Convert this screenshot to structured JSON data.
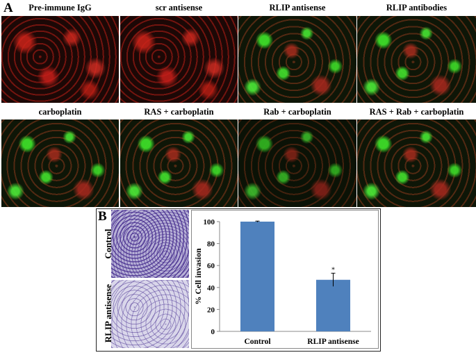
{
  "panel_a": {
    "letter": "A",
    "row1_labels": [
      "Pre-immune IgG",
      "scr antisense",
      "RLIP antisense",
      "RLIP antibodies"
    ],
    "row2_labels": [
      "carboplatin",
      "RAS + carboplatin",
      "Rab + carboplatin",
      "RAS + Rab + carboplatin"
    ]
  },
  "panel_b": {
    "letter": "B",
    "image_labels": [
      "Control",
      "RLIP antisense"
    ]
  },
  "chart_data": {
    "type": "bar",
    "categories": [
      "Control",
      "RLIP antisense"
    ],
    "values": [
      100,
      47
    ],
    "errors": [
      0.5,
      6
    ],
    "annotations": [
      "",
      "*"
    ],
    "ylabel": "% Cell invasion",
    "xlabel": "",
    "ylim": [
      0,
      100
    ],
    "yticks": [
      0,
      20,
      40,
      60,
      80,
      100
    ],
    "bar_color": "#4f81bd",
    "grid": false
  }
}
